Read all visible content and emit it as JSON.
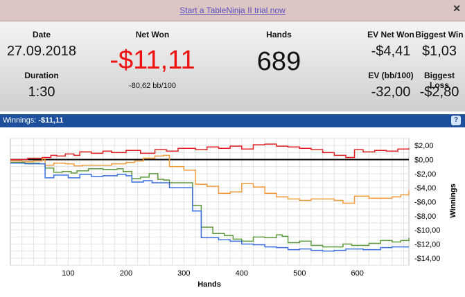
{
  "banner": {
    "trial_link": "Start a TableNinja II trial now",
    "close_icon": "close-icon"
  },
  "stats": {
    "date_label": "Date",
    "date_value": "27.09.2018",
    "duration_label": "Duration",
    "duration_value": "1:30",
    "net_won_label": "Net Won",
    "net_won_value": "-$11,11",
    "net_won_sub": "-80,62 bb/100",
    "hands_label": "Hands",
    "hands_value": "689",
    "ev_net_won_label": "EV Net Won",
    "ev_net_won_value": "-$4,41",
    "biggest_win_label": "Biggest Win",
    "biggest_win_value": "$1,03",
    "ev_bb_label": "EV (bb/100)",
    "ev_bb_value": "-32,00",
    "biggest_loss_label": "Biggest Loss",
    "biggest_loss_value": "-$2,80"
  },
  "colors": {
    "net_won": "#ee1111",
    "header_bar": "#1e4f9c"
  },
  "chart_header": {
    "label": "Winnings:",
    "value": "-$11,11",
    "help_icon": "help-icon"
  },
  "chart_data": {
    "type": "line",
    "xlabel": "Hands",
    "ylabel": "Winnings",
    "xlim": [
      0,
      689
    ],
    "ylim": [
      -15,
      3
    ],
    "xticks": [
      100,
      200,
      300,
      400,
      500,
      600
    ],
    "xtick_labels": [
      "100",
      "200",
      "300",
      "400",
      "500",
      "600"
    ],
    "yticks": [
      2,
      0,
      -2,
      -4,
      -6,
      -8,
      -10,
      -12,
      -14
    ],
    "ytick_labels": [
      "$2,00",
      "$0,00",
      "-$2,00",
      "-$4,00",
      "-$6,00",
      "-$8,00",
      "-$10,00",
      "-$12,00",
      "-$14,00"
    ],
    "grid": true,
    "series": [
      {
        "color": "#e02020",
        "points": [
          [
            0,
            0
          ],
          [
            30,
            0.2
          ],
          [
            55,
            0.3
          ],
          [
            70,
            0.6
          ],
          [
            80,
            0.5
          ],
          [
            95,
            0.8
          ],
          [
            110,
            0.6
          ],
          [
            120,
            1.1
          ],
          [
            140,
            0.9
          ],
          [
            160,
            1.2
          ],
          [
            175,
            1.0
          ],
          [
            200,
            1.3
          ],
          [
            225,
            0.9
          ],
          [
            250,
            1.4
          ],
          [
            270,
            1.2
          ],
          [
            290,
            1.6
          ],
          [
            320,
            1.4
          ],
          [
            340,
            1.8
          ],
          [
            360,
            1.6
          ],
          [
            380,
            1.9
          ],
          [
            400,
            1.5
          ],
          [
            420,
            2.1
          ],
          [
            440,
            2.2
          ],
          [
            460,
            1.9
          ],
          [
            480,
            1.8
          ],
          [
            500,
            1.6
          ],
          [
            520,
            1.4
          ],
          [
            540,
            1.0
          ],
          [
            560,
            0.6
          ],
          [
            580,
            0.3
          ],
          [
            595,
            1.4
          ],
          [
            610,
            1.1
          ],
          [
            630,
            1.3
          ],
          [
            650,
            1.2
          ],
          [
            670,
            1.5
          ],
          [
            689,
            1.6
          ]
        ]
      },
      {
        "color": "#f59a3b",
        "points": [
          [
            0,
            -0.2
          ],
          [
            20,
            -0.3
          ],
          [
            40,
            -0.2
          ],
          [
            55,
            0.1
          ],
          [
            60,
            -0.8
          ],
          [
            75,
            -0.5
          ],
          [
            95,
            -0.6
          ],
          [
            110,
            -0.9
          ],
          [
            125,
            -0.8
          ],
          [
            150,
            -0.8
          ],
          [
            175,
            -0.6
          ],
          [
            200,
            -0.4
          ],
          [
            215,
            -0.2
          ],
          [
            230,
            0.2
          ],
          [
            250,
            0.5
          ],
          [
            265,
            0.6
          ],
          [
            275,
            -1.0
          ],
          [
            300,
            -1.5
          ],
          [
            320,
            -3.5
          ],
          [
            340,
            -3.8
          ],
          [
            360,
            -4.8
          ],
          [
            380,
            -4.6
          ],
          [
            400,
            -3.4
          ],
          [
            420,
            -3.9
          ],
          [
            440,
            -4.8
          ],
          [
            460,
            -5.3
          ],
          [
            480,
            -5.6
          ],
          [
            500,
            -5.8
          ],
          [
            520,
            -5.6
          ],
          [
            540,
            -5.6
          ],
          [
            560,
            -5.8
          ],
          [
            575,
            -6.2
          ],
          [
            595,
            -5.2
          ],
          [
            620,
            -5.5
          ],
          [
            640,
            -5.5
          ],
          [
            660,
            -5.3
          ],
          [
            675,
            -5.0
          ],
          [
            689,
            -4.4
          ]
        ]
      },
      {
        "color": "#5c9a3a",
        "points": [
          [
            0,
            -0.4
          ],
          [
            25,
            -0.5
          ],
          [
            50,
            -0.6
          ],
          [
            60,
            -1.2
          ],
          [
            75,
            -1.8
          ],
          [
            90,
            -1.7
          ],
          [
            105,
            -1.9
          ],
          [
            115,
            -1.6
          ],
          [
            135,
            -1.3
          ],
          [
            160,
            -1.4
          ],
          [
            185,
            -1.3
          ],
          [
            195,
            -1.7
          ],
          [
            210,
            -2.7
          ],
          [
            225,
            -2.5
          ],
          [
            240,
            -2.0
          ],
          [
            255,
            -2.8
          ],
          [
            265,
            -2.9
          ],
          [
            275,
            -3.3
          ],
          [
            315,
            -6.5
          ],
          [
            330,
            -9.6
          ],
          [
            350,
            -10.5
          ],
          [
            370,
            -10.8
          ],
          [
            385,
            -11.3
          ],
          [
            400,
            -11.6
          ],
          [
            420,
            -11.0
          ],
          [
            440,
            -11.1
          ],
          [
            460,
            -10.7
          ],
          [
            470,
            -10.9
          ],
          [
            480,
            -11.8
          ],
          [
            500,
            -11.6
          ],
          [
            520,
            -12.2
          ],
          [
            540,
            -12.4
          ],
          [
            560,
            -12.4
          ],
          [
            575,
            -12.0
          ],
          [
            590,
            -12.2
          ],
          [
            620,
            -11.9
          ],
          [
            640,
            -11.5
          ],
          [
            660,
            -11.7
          ],
          [
            675,
            -11.5
          ],
          [
            689,
            -11.1
          ]
        ]
      },
      {
        "color": "#3a6fe0",
        "points": [
          [
            0,
            -0.5
          ],
          [
            25,
            -0.6
          ],
          [
            50,
            -0.6
          ],
          [
            60,
            -2.6
          ],
          [
            75,
            -2.2
          ],
          [
            100,
            -2.6
          ],
          [
            120,
            -2.1
          ],
          [
            140,
            -2.4
          ],
          [
            160,
            -2.3
          ],
          [
            185,
            -2.1
          ],
          [
            200,
            -2.3
          ],
          [
            210,
            -3.2
          ],
          [
            230,
            -3.0
          ],
          [
            245,
            -3.3
          ],
          [
            265,
            -3.3
          ],
          [
            275,
            -4.0
          ],
          [
            315,
            -7.3
          ],
          [
            330,
            -11.1
          ],
          [
            360,
            -11.4
          ],
          [
            380,
            -11.6
          ],
          [
            400,
            -12.0
          ],
          [
            420,
            -12.1
          ],
          [
            440,
            -12.4
          ],
          [
            460,
            -12.5
          ],
          [
            480,
            -12.8
          ],
          [
            500,
            -12.7
          ],
          [
            520,
            -12.9
          ],
          [
            540,
            -13.0
          ],
          [
            560,
            -12.9
          ],
          [
            580,
            -12.7
          ],
          [
            610,
            -12.8
          ],
          [
            640,
            -12.5
          ],
          [
            660,
            -12.4
          ],
          [
            689,
            -12.4
          ]
        ]
      }
    ]
  }
}
